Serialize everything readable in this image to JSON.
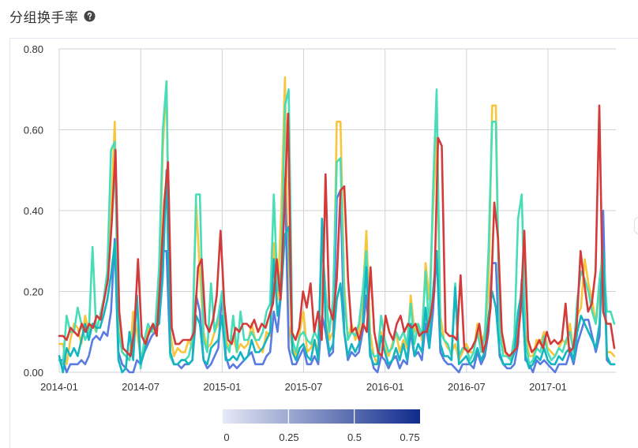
{
  "header": {
    "title": "分组换手率",
    "help_icon": "question-circle-icon"
  },
  "chart_data": {
    "type": "line",
    "title": "",
    "xlabel": "",
    "ylabel": "",
    "ylim": [
      0,
      0.8
    ],
    "yticks": [
      "0.00",
      "0.20",
      "0.40",
      "0.60",
      "0.80"
    ],
    "x_start": "2014-01",
    "x_end": "2017-06",
    "xticks": [
      "2014-01",
      "2014-07",
      "2015-01",
      "2015-07",
      "2016-01",
      "2016-07",
      "2017-01"
    ],
    "grid": true,
    "series": [
      {
        "color": "#f9c53a",
        "values": [
          0.07,
          0.07,
          0.02,
          0.08,
          0.12,
          0.11,
          0.07,
          0.14,
          0.1,
          0.12,
          0.1,
          0.14,
          0.18,
          0.22,
          0.38,
          0.62,
          0.17,
          0.05,
          0.04,
          0.03,
          0.15,
          0.1,
          0.04,
          0.06,
          0.11,
          0.1,
          0.1,
          0.2,
          0.55,
          0.72,
          0.1,
          0.04,
          0.06,
          0.05,
          0.05,
          0.08,
          0.06,
          0.42,
          0.25,
          0.1,
          0.06,
          0.07,
          0.1,
          0.12,
          0.18,
          0.08,
          0.06,
          0.09,
          0.05,
          0.07,
          0.06,
          0.07,
          0.12,
          0.08,
          0.06,
          0.05,
          0.1,
          0.09,
          0.32,
          0.18,
          0.4,
          0.73,
          0.12,
          0.06,
          0.04,
          0.1,
          0.15,
          0.05,
          0.06,
          0.08,
          0.05,
          0.32,
          0.2,
          0.08,
          0.1,
          0.62,
          0.62,
          0.22,
          0.08,
          0.12,
          0.08,
          0.1,
          0.18,
          0.35,
          0.1,
          0.04,
          0.02,
          0.1,
          0.06,
          0.04,
          0.07,
          0.1,
          0.05,
          0.08,
          0.06,
          0.19,
          0.1,
          0.12,
          0.08,
          0.27,
          0.18,
          0.4,
          0.58,
          0.14,
          0.08,
          0.06,
          0.05,
          0.07,
          0.03,
          0.05,
          0.07,
          0.05,
          0.05,
          0.12,
          0.07,
          0.1,
          0.2,
          0.66,
          0.66,
          0.1,
          0.06,
          0.04,
          0.03,
          0.06,
          0.12,
          0.22,
          0.1,
          0.04,
          0.04,
          0.08,
          0.07,
          0.1,
          0.06,
          0.05,
          0.04,
          0.06,
          0.08,
          0.07,
          0.12,
          0.05,
          0.14,
          0.16,
          0.28,
          0.22,
          0.18,
          0.12,
          0.2,
          0.3,
          0.05,
          0.05,
          0.04
        ]
      },
      {
        "color": "#5a7be0",
        "values": [
          0.03,
          0.03,
          0.0,
          0.02,
          0.02,
          0.02,
          0.03,
          0.02,
          0.04,
          0.08,
          0.09,
          0.08,
          0.1,
          0.09,
          0.15,
          0.33,
          0.05,
          0.02,
          0.01,
          0.0,
          0.0,
          0.03,
          0.02,
          0.05,
          0.07,
          0.09,
          0.1,
          0.17,
          0.3,
          0.3,
          0.04,
          0.02,
          0.02,
          0.01,
          0.02,
          0.02,
          0.03,
          0.19,
          0.15,
          0.03,
          0.01,
          0.02,
          0.04,
          0.06,
          0.2,
          0.04,
          0.01,
          0.02,
          0.01,
          0.02,
          0.03,
          0.04,
          0.05,
          0.02,
          0.02,
          0.02,
          0.04,
          0.05,
          0.15,
          0.1,
          0.2,
          0.48,
          0.06,
          0.02,
          0.02,
          0.04,
          0.06,
          0.02,
          0.02,
          0.04,
          0.02,
          0.14,
          0.1,
          0.04,
          0.05,
          0.43,
          0.45,
          0.1,
          0.03,
          0.05,
          0.04,
          0.05,
          0.1,
          0.19,
          0.05,
          0.01,
          0.0,
          0.04,
          0.03,
          0.01,
          0.03,
          0.04,
          0.01,
          0.03,
          0.02,
          0.1,
          0.04,
          0.05,
          0.03,
          0.12,
          0.06,
          0.15,
          0.3,
          0.05,
          0.03,
          0.02,
          0.02,
          0.01,
          0.0,
          0.02,
          0.02,
          0.02,
          0.01,
          0.05,
          0.02,
          0.04,
          0.1,
          0.27,
          0.27,
          0.04,
          0.02,
          0.01,
          0.01,
          0.02,
          0.07,
          0.23,
          0.03,
          0.02,
          0.0,
          0.03,
          0.02,
          0.03,
          0.02,
          0.01,
          0.0,
          0.02,
          0.02,
          0.02,
          0.05,
          0.02,
          0.07,
          0.1,
          0.13,
          0.13,
          0.09,
          0.05,
          0.09,
          0.4,
          0.03,
          0.02,
          0.02
        ]
      },
      {
        "color": "#47ddb8",
        "values": [
          0.03,
          0.02,
          0.14,
          0.1,
          0.1,
          0.16,
          0.12,
          0.08,
          0.1,
          0.31,
          0.1,
          0.14,
          0.18,
          0.25,
          0.55,
          0.57,
          0.1,
          0.05,
          0.04,
          0.03,
          0.1,
          0.18,
          0.01,
          0.08,
          0.12,
          0.1,
          0.12,
          0.26,
          0.6,
          0.72,
          0.04,
          0.02,
          0.02,
          0.03,
          0.03,
          0.04,
          0.08,
          0.44,
          0.44,
          0.08,
          0.05,
          0.22,
          0.1,
          0.14,
          0.2,
          0.07,
          0.05,
          0.14,
          0.05,
          0.15,
          0.08,
          0.08,
          0.1,
          0.08,
          0.08,
          0.1,
          0.15,
          0.17,
          0.44,
          0.2,
          0.25,
          0.66,
          0.7,
          0.08,
          0.05,
          0.09,
          0.1,
          0.08,
          0.07,
          0.1,
          0.08,
          0.32,
          0.2,
          0.1,
          0.18,
          0.52,
          0.53,
          0.19,
          0.08,
          0.1,
          0.09,
          0.12,
          0.2,
          0.3,
          0.06,
          0.04,
          0.04,
          0.14,
          0.08,
          0.05,
          0.06,
          0.1,
          0.08,
          0.1,
          0.07,
          0.17,
          0.07,
          0.12,
          0.09,
          0.25,
          0.1,
          0.45,
          0.7,
          0.1,
          0.08,
          0.07,
          0.04,
          0.22,
          0.04,
          0.06,
          0.06,
          0.03,
          0.05,
          0.1,
          0.05,
          0.09,
          0.3,
          0.62,
          0.62,
          0.1,
          0.04,
          0.04,
          0.03,
          0.09,
          0.38,
          0.44,
          0.08,
          0.02,
          0.03,
          0.06,
          0.05,
          0.09,
          0.05,
          0.03,
          0.04,
          0.06,
          0.05,
          0.08,
          0.1,
          0.05,
          0.18,
          0.25,
          0.23,
          0.2,
          0.15,
          0.12,
          0.23,
          0.3,
          0.15,
          0.15,
          0.12
        ]
      },
      {
        "color": "#12b5c0",
        "values": [
          0.04,
          0.0,
          0.06,
          0.04,
          0.06,
          0.04,
          0.08,
          0.12,
          0.08,
          0.12,
          0.11,
          0.11,
          0.14,
          0.18,
          0.24,
          0.32,
          0.03,
          0.0,
          0.01,
          0.1,
          0.03,
          0.19,
          0.02,
          0.05,
          0.09,
          0.11,
          0.11,
          0.12,
          0.24,
          0.5,
          0.05,
          0.02,
          0.02,
          0.03,
          0.03,
          0.02,
          0.03,
          0.14,
          0.12,
          0.03,
          0.02,
          0.06,
          0.07,
          0.08,
          0.14,
          0.03,
          0.03,
          0.04,
          0.03,
          0.05,
          0.03,
          0.04,
          0.08,
          0.05,
          0.05,
          0.06,
          0.08,
          0.1,
          0.28,
          0.14,
          0.2,
          0.34,
          0.36,
          0.05,
          0.03,
          0.06,
          0.07,
          0.04,
          0.03,
          0.08,
          0.03,
          0.38,
          0.12,
          0.05,
          0.07,
          0.18,
          0.22,
          0.1,
          0.04,
          0.07,
          0.05,
          0.07,
          0.12,
          0.26,
          0.04,
          0.02,
          0.02,
          0.09,
          0.05,
          0.02,
          0.03,
          0.06,
          0.03,
          0.07,
          0.03,
          0.12,
          0.04,
          0.07,
          0.05,
          0.16,
          0.06,
          0.2,
          0.3,
          0.07,
          0.04,
          0.04,
          0.03,
          0.21,
          0.02,
          0.03,
          0.04,
          0.02,
          0.03,
          0.06,
          0.03,
          0.05,
          0.14,
          0.2,
          0.16,
          0.05,
          0.02,
          0.02,
          0.02,
          0.05,
          0.15,
          0.2,
          0.04,
          0.01,
          0.02,
          0.04,
          0.03,
          0.06,
          0.03,
          0.02,
          0.02,
          0.04,
          0.03,
          0.05,
          0.06,
          0.03,
          0.1,
          0.14,
          0.12,
          0.1,
          0.08,
          0.06,
          0.12,
          0.3,
          0.04,
          0.02,
          0.02
        ]
      },
      {
        "color": "#d33a3a",
        "values": [
          0.09,
          0.09,
          0.08,
          0.11,
          0.1,
          0.09,
          0.12,
          0.1,
          0.12,
          0.11,
          0.14,
          0.13,
          0.18,
          0.23,
          0.37,
          0.55,
          0.15,
          0.06,
          0.05,
          0.04,
          0.1,
          0.28,
          0.09,
          0.07,
          0.1,
          0.12,
          0.09,
          0.24,
          0.42,
          0.52,
          0.11,
          0.07,
          0.07,
          0.08,
          0.08,
          0.08,
          0.1,
          0.26,
          0.28,
          0.12,
          0.1,
          0.13,
          0.19,
          0.35,
          0.17,
          0.08,
          0.07,
          0.11,
          0.1,
          0.12,
          0.12,
          0.11,
          0.13,
          0.1,
          0.12,
          0.11,
          0.14,
          0.17,
          0.28,
          0.18,
          0.4,
          0.64,
          0.1,
          0.08,
          0.11,
          0.2,
          0.16,
          0.22,
          0.1,
          0.15,
          0.08,
          0.49,
          0.16,
          0.13,
          0.23,
          0.45,
          0.46,
          0.23,
          0.1,
          0.11,
          0.08,
          0.12,
          0.1,
          0.26,
          0.1,
          0.05,
          0.04,
          0.14,
          0.1,
          0.08,
          0.12,
          0.14,
          0.1,
          0.12,
          0.11,
          0.12,
          0.09,
          0.1,
          0.1,
          0.14,
          0.2,
          0.58,
          0.56,
          0.1,
          0.09,
          0.09,
          0.08,
          0.24,
          0.06,
          0.05,
          0.06,
          0.08,
          0.12,
          0.05,
          0.08,
          0.16,
          0.42,
          0.33,
          0.1,
          0.05,
          0.04,
          0.05,
          0.06,
          0.15,
          0.35,
          0.08,
          0.05,
          0.06,
          0.08,
          0.06,
          0.1,
          0.07,
          0.08,
          0.07,
          0.08,
          0.17,
          0.05,
          0.06,
          0.12,
          0.3,
          0.22,
          0.15,
          0.17,
          0.25,
          0.66,
          0.15,
          0.12,
          0.12,
          0.06
        ]
      }
    ]
  },
  "visual_map": {
    "labels": [
      "0",
      "0.25",
      "0.5",
      "0.75"
    ],
    "color_start": "#e6e9f5",
    "color_end": "#0f2b8c"
  },
  "theme": {
    "grid_color": "#cfd2d8",
    "axis_text_color": "#333333"
  }
}
